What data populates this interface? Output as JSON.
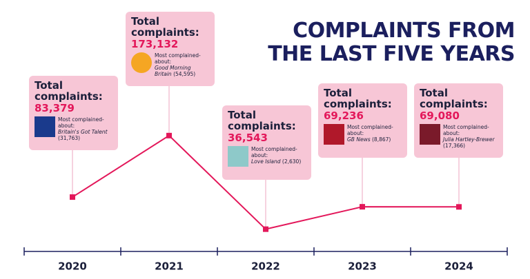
{
  "chart_data": {
    "type": "line",
    "title": "COMPLAINTS FROM THE LAST FIVE YEARS",
    "categories": [
      "2020",
      "2021",
      "2022",
      "2023",
      "2024"
    ],
    "values": [
      83379,
      173132,
      36543,
      69236,
      69080
    ],
    "value_labels": [
      "83,379",
      "173,132",
      "36,543",
      "69,236",
      "69,080"
    ],
    "color": "#e3175a",
    "ylim": [
      0,
      180000
    ],
    "annotations": [
      {
        "label": "Total complaints:",
        "sublabel": "Most complained-about:",
        "show": "Britain's Got Talent",
        "show_count": "(31,763)"
      },
      {
        "label": "Total complaints:",
        "sublabel": "Most complained-about:",
        "show": "Good Morning Britain",
        "show_count": "(54,595)"
      },
      {
        "label": "Total complaints:",
        "sublabel": "Most complained-about:",
        "show": "Love Island",
        "show_count": "(2,630)"
      },
      {
        "label": "Total complaints:",
        "sublabel": "Most complained-about:",
        "show": "GB News",
        "show_count": "(8,867)"
      },
      {
        "label": "Total complaints:",
        "sublabel": "Most complained-about:",
        "show": "Julia Hartley-Brewer",
        "show_count": "(17,366)"
      }
    ]
  }
}
